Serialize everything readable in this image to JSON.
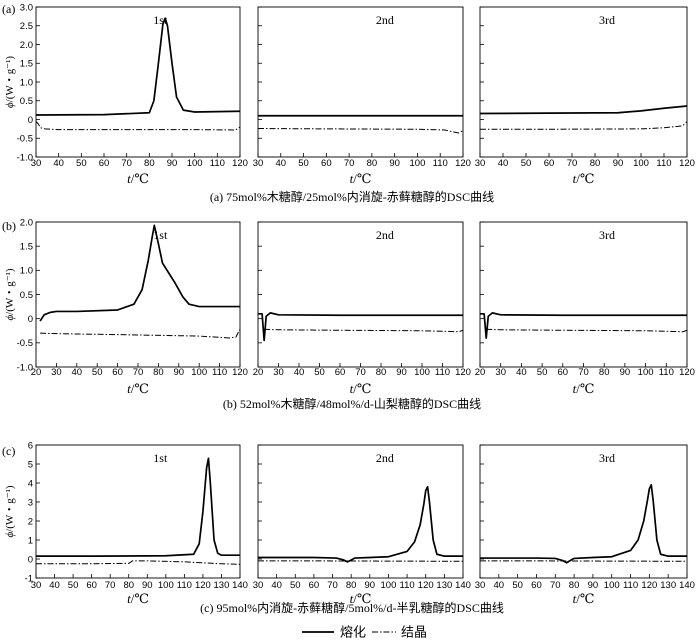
{
  "legend": {
    "melt_label": "熔化",
    "cryst_label": "结晶",
    "position": "bottom-center"
  },
  "chart_data": [
    {
      "type": "line",
      "panel_tag": "(a)",
      "caption": "(a) 75mol%木糖醇/25mol%内消旋-赤藓糖醇的DSC曲线",
      "xlabel_italic": "t",
      "xlabel_unit": "/℃",
      "ylabel_italic": "ϕ",
      "ylabel_unit": "/(W・g⁻¹)",
      "xlim": [
        30,
        120
      ],
      "xticks": [
        "30",
        "40",
        "50",
        "60",
        "70",
        "80",
        "90",
        "100",
        "110",
        "120"
      ],
      "ylim": [
        -1.0,
        3.0
      ],
      "yticks": [
        "-1.0",
        "-0.5",
        "0",
        "0.5",
        "1.0",
        "1.5",
        "2.0",
        "2.5",
        "3.0"
      ],
      "subplots": [
        {
          "label": "1st",
          "melting": {
            "x": [
              30,
              60,
              80,
              82,
              84,
              86,
              87,
              88,
              90,
              92,
              95,
              100,
              120
            ],
            "y": [
              0.12,
              0.13,
              0.18,
              0.5,
              1.5,
              2.55,
              2.7,
              2.5,
              1.5,
              0.6,
              0.25,
              0.2,
              0.22
            ]
          },
          "crystallization": {
            "x": [
              30,
              31,
              32,
              34,
              40,
              60,
              100,
              118,
              120
            ],
            "y": [
              -0.05,
              -0.12,
              -0.22,
              -0.25,
              -0.27,
              -0.27,
              -0.27,
              -0.28,
              -0.2
            ]
          }
        },
        {
          "label": "2nd",
          "melting": {
            "x": [
              30,
              60,
              120
            ],
            "y": [
              0.1,
              0.1,
              0.1
            ]
          },
          "crystallization": {
            "x": [
              30,
              60,
              100,
              112,
              118,
              120
            ],
            "y": [
              -0.24,
              -0.25,
              -0.26,
              -0.28,
              -0.36,
              -0.3
            ]
          }
        },
        {
          "label": "3rd",
          "melting": {
            "x": [
              30,
              60,
              90,
              100,
              110,
              120
            ],
            "y": [
              0.16,
              0.17,
              0.18,
              0.23,
              0.3,
              0.36
            ]
          },
          "crystallization": {
            "x": [
              30,
              60,
              100,
              110,
              118,
              120
            ],
            "y": [
              -0.26,
              -0.26,
              -0.25,
              -0.22,
              -0.17,
              -0.06
            ]
          }
        }
      ]
    },
    {
      "type": "line",
      "panel_tag": "(b)",
      "caption": "(b) 52mol%木糖醇/48mol%/d-山梨糖醇的DSC曲线",
      "xlabel_italic": "t",
      "xlabel_unit": "/℃",
      "ylabel_italic": "ϕ",
      "ylabel_unit": "/(W・g⁻¹)",
      "xlim": [
        20,
        120
      ],
      "xticks": [
        "20",
        "30",
        "40",
        "50",
        "60",
        "70",
        "80",
        "90",
        "100",
        "110",
        "120"
      ],
      "ylim": [
        -1.0,
        2.0
      ],
      "yticks": [
        "-1.0",
        "-0.5",
        "0",
        "0.5",
        "1.0",
        "1.5",
        "2.0"
      ],
      "subplots": [
        {
          "label": "1st",
          "melting": {
            "x": [
              22,
              24,
              27,
              30,
              40,
              60,
              68,
              72,
              75,
              77,
              78,
              80,
              82,
              85,
              88,
              92,
              95,
              100,
              120
            ],
            "y": [
              -0.05,
              0.08,
              0.13,
              0.15,
              0.15,
              0.18,
              0.3,
              0.6,
              1.2,
              1.7,
              1.93,
              1.55,
              1.15,
              0.95,
              0.75,
              0.45,
              0.3,
              0.25,
              0.25
            ]
          },
          "crystallization": {
            "x": [
              22,
              30,
              60,
              100,
              115,
              118,
              120
            ],
            "y": [
              -0.3,
              -0.31,
              -0.33,
              -0.36,
              -0.4,
              -0.38,
              -0.22
            ]
          }
        },
        {
          "label": "2nd",
          "melting": {
            "x": [
              20,
              22,
              23,
              24,
              26,
              30,
              60,
              120
            ],
            "y": [
              0.1,
              0.1,
              -0.45,
              0.05,
              0.12,
              0.08,
              0.07,
              0.07
            ]
          },
          "crystallization": {
            "x": [
              23,
              30,
              60,
              100,
              118,
              120
            ],
            "y": [
              -0.22,
              -0.23,
              -0.24,
              -0.25,
              -0.27,
              -0.24
            ]
          }
        },
        {
          "label": "3rd",
          "melting": {
            "x": [
              20,
              22,
              23,
              24,
              26,
              30,
              60,
              120
            ],
            "y": [
              0.1,
              0.1,
              -0.4,
              0.05,
              0.12,
              0.08,
              0.07,
              0.07
            ]
          },
          "crystallization": {
            "x": [
              23,
              30,
              60,
              100,
              118,
              120
            ],
            "y": [
              -0.22,
              -0.23,
              -0.24,
              -0.25,
              -0.27,
              -0.24
            ]
          }
        }
      ]
    },
    {
      "type": "line",
      "panel_tag": "(c)",
      "caption": "(c) 95mol%内消旋-赤藓糖醇/5mol%/d-半乳糖醇的DSC曲线",
      "xlabel_italic": "t",
      "xlabel_unit": "/℃",
      "ylabel_italic": "ϕ",
      "ylabel_unit": "/(W・g⁻¹)",
      "xlim": [
        30,
        140
      ],
      "xticks": [
        "30",
        "40",
        "50",
        "60",
        "70",
        "80",
        "90",
        "100",
        "110",
        "120",
        "130",
        "140"
      ],
      "ylim": [
        -1,
        6
      ],
      "yticks": [
        "-1",
        "0",
        "1",
        "2",
        "3",
        "4",
        "5",
        "6"
      ],
      "subplots": [
        {
          "label": "1st",
          "melting": {
            "x": [
              30,
              60,
              100,
              115,
              118,
              120,
              122,
              123,
              124,
              126,
              128,
              130,
              140
            ],
            "y": [
              0.15,
              0.15,
              0.17,
              0.25,
              0.8,
              2.5,
              4.8,
              5.3,
              4.0,
              1.0,
              0.3,
              0.2,
              0.2
            ]
          },
          "crystallization": {
            "x": [
              30,
              60,
              80,
              82,
              90,
              110,
              130,
              140
            ],
            "y": [
              -0.25,
              -0.25,
              -0.23,
              -0.1,
              -0.1,
              -0.15,
              -0.25,
              -0.28
            ]
          }
        },
        {
          "label": "2nd",
          "melting": {
            "x": [
              30,
              60,
              72,
              76,
              78,
              80,
              82,
              90,
              100,
              110,
              114,
              117,
              119,
              120,
              121,
              122,
              124,
              126,
              130,
              140
            ],
            "y": [
              0.08,
              0.08,
              0.05,
              -0.05,
              -0.15,
              -0.05,
              0.05,
              0.08,
              0.12,
              0.4,
              0.9,
              1.8,
              2.9,
              3.6,
              3.8,
              3.0,
              1.0,
              0.25,
              0.15,
              0.15
            ]
          },
          "crystallization": {
            "x": [
              30,
              60,
              100,
              140
            ],
            "y": [
              -0.1,
              -0.1,
              -0.11,
              -0.12
            ]
          }
        },
        {
          "label": "3rd",
          "melting": {
            "x": [
              30,
              60,
              70,
              74,
              76,
              78,
              80,
              90,
              100,
              110,
              114,
              117,
              119,
              120,
              121,
              122,
              124,
              126,
              130,
              140
            ],
            "y": [
              0.05,
              0.05,
              0.03,
              -0.08,
              -0.2,
              -0.08,
              0.03,
              0.08,
              0.12,
              0.45,
              1.0,
              2.0,
              3.1,
              3.7,
              3.9,
              3.1,
              1.0,
              0.25,
              0.15,
              0.15
            ]
          },
          "crystallization": {
            "x": [
              30,
              60,
              100,
              140
            ],
            "y": [
              -0.1,
              -0.1,
              -0.11,
              -0.12
            ]
          }
        }
      ]
    }
  ]
}
